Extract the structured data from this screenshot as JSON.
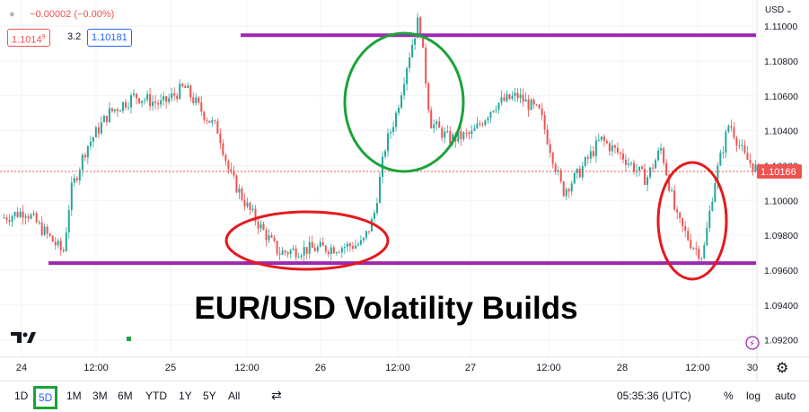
{
  "header": {
    "change": "−0.00002 (−0.00%)",
    "bid": "1.1014",
    "bid_sup": "9",
    "spread": "3.2",
    "ask": "1.10181",
    "currency": "USD",
    "title": "EUR/USD Volatility Builds"
  },
  "colors": {
    "up": "#26a69a",
    "down": "#ef5350",
    "support_resistance": "#9c27b0",
    "green_ellipse": "#1aa33a",
    "red_ellipse": "#e5191d"
  },
  "toolbar": {
    "ranges": [
      "1D",
      "5D",
      "1M",
      "3M",
      "6M",
      "YTD",
      "1Y",
      "5Y",
      "All"
    ],
    "selected": "5D",
    "time": "05:35:36 (UTC)",
    "percent": "%",
    "log": "log",
    "auto": "auto",
    "compare_icon": "compare-icon",
    "settings_icon": "gear-icon",
    "logo": "tradingview-logo"
  },
  "chart_data": {
    "type": "candlestick",
    "title": "EUR/USD Volatility Builds",
    "y_axis_label": "USD",
    "ylim": [
      1.091,
      1.1115
    ],
    "y_ticks": [
      1.092,
      1.094,
      1.096,
      1.098,
      1.1,
      1.102,
      1.104,
      1.106,
      1.108,
      1.11
    ],
    "x_ticks": [
      "24",
      "12:00",
      "25",
      "12:00",
      "26",
      "12:00",
      "27",
      "12:00",
      "28",
      "12:00",
      "30"
    ],
    "current_price": 1.10166,
    "resistance": 1.10948,
    "support": 1.0964,
    "path": [
      [
        0.0,
        1.099
      ],
      [
        0.03,
        1.0994
      ],
      [
        0.055,
        1.0982
      ],
      [
        0.08,
        1.097
      ],
      [
        0.09,
        1.1005
      ],
      [
        0.11,
        1.103
      ],
      [
        0.14,
        1.105
      ],
      [
        0.175,
        1.106
      ],
      [
        0.21,
        1.1055
      ],
      [
        0.24,
        1.1065
      ],
      [
        0.265,
        1.105
      ],
      [
        0.285,
        1.104
      ],
      [
        0.3,
        1.1015
      ],
      [
        0.325,
        1.0995
      ],
      [
        0.345,
        1.0982
      ],
      [
        0.365,
        1.097
      ],
      [
        0.4,
        1.0972
      ],
      [
        0.44,
        1.0973
      ],
      [
        0.475,
        1.0975
      ],
      [
        0.49,
        1.099
      ],
      [
        0.505,
        1.103
      ],
      [
        0.52,
        1.105
      ],
      [
        0.535,
        1.108
      ],
      [
        0.55,
        1.1105
      ],
      [
        0.565,
        1.1045
      ],
      [
        0.59,
        1.1035
      ],
      [
        0.62,
        1.1038
      ],
      [
        0.65,
        1.1055
      ],
      [
        0.68,
        1.106
      ],
      [
        0.71,
        1.105
      ],
      [
        0.74,
        1.1005
      ],
      [
        0.76,
        1.1015
      ],
      [
        0.79,
        1.1035
      ],
      [
        0.82,
        1.1025
      ],
      [
        0.85,
        1.1012
      ],
      [
        0.87,
        1.103
      ],
      [
        0.89,
        1.099
      ],
      [
        0.91,
        1.0975
      ],
      [
        0.925,
        1.0968
      ],
      [
        0.94,
        1.101
      ],
      [
        0.96,
        1.1045
      ],
      [
        0.98,
        1.1025
      ],
      [
        1.0,
        1.1016
      ]
    ]
  }
}
